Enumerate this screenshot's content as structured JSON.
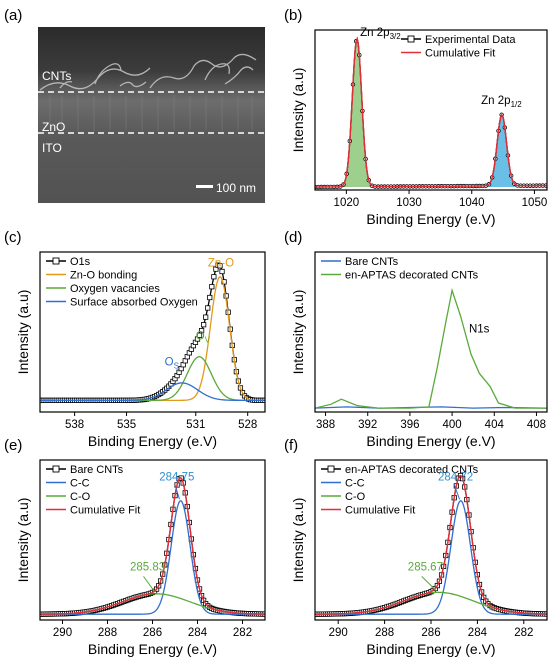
{
  "colors": {
    "black": "#000000",
    "red": "#e0303a",
    "blue": "#2f6fd0",
    "green": "#5aaa3a",
    "orange": "#e29a1a",
    "greenFill": "#8cc878",
    "blueFill": "#4fb4e0"
  },
  "sem": {
    "label": "(a)",
    "layers": {
      "cnts": "CNTs",
      "zno": "ZnO",
      "ito": "ITO"
    },
    "scale_bar": "100 nm"
  },
  "chart_data": [
    {
      "id": "b",
      "label": "(b)",
      "type": "line",
      "xlabel": "Binding Energy (e.V)",
      "ylabel": "Intensity (a.u)",
      "xlim": [
        1015,
        1052
      ],
      "ylim": [
        0,
        1.08
      ],
      "xreverse": false,
      "xticks": [
        1020,
        1030,
        1040,
        1050
      ],
      "series": [
        {
          "name": "Experimental Data",
          "role": "exp",
          "color": "#000000",
          "peaks": [
            {
              "center": 1021.7,
              "sigma": 0.75,
              "amp": 1.0
            },
            {
              "center": 1044.8,
              "sigma": 0.75,
              "amp": 0.48
            }
          ],
          "baseline": [
            0.02,
            0.03
          ]
        },
        {
          "name": "Cumulative Fit",
          "role": "fit",
          "color": "#e0303a",
          "peaks": [
            {
              "center": 1021.7,
              "sigma": 0.75,
              "amp": 1.0
            },
            {
              "center": 1044.8,
              "sigma": 0.75,
              "amp": 0.48
            }
          ],
          "baseline": [
            0.02,
            0.03
          ]
        }
      ],
      "fills": [
        {
          "color": "#8cc878",
          "center": 1021.7,
          "sigma": 0.75,
          "amp": 1.0
        },
        {
          "color": "#4fb4e0",
          "center": 1044.8,
          "sigma": 0.75,
          "amp": 0.48
        }
      ],
      "annotations": [
        {
          "main": "Zn 2p",
          "sub": "3/2",
          "x": 1022.2,
          "y": 1.04,
          "color": "#000000"
        },
        {
          "main": "Zn 2p",
          "sub": "1/2",
          "x": 1041.5,
          "y": 0.58,
          "color": "#000000"
        }
      ]
    },
    {
      "id": "c",
      "label": "(c)",
      "type": "line",
      "xlabel": "Binding Energy (e.V)",
      "ylabel": "Intensity (a.u)",
      "xlim": [
        540,
        527
      ],
      "ylim": [
        0,
        1.1
      ],
      "xreverse": true,
      "xticks": [
        538,
        535,
        531,
        528
      ],
      "series": [
        {
          "name": "O1s",
          "role": "exp",
          "color": "#000000",
          "peaks": [
            {
              "center": 529.6,
              "sigma": 0.55,
              "amp": 0.85
            },
            {
              "center": 530.8,
              "sigma": 0.7,
              "amp": 0.3
            },
            {
              "center": 531.8,
              "sigma": 0.9,
              "amp": 0.12
            }
          ],
          "baseline": [
            0.08,
            0.08
          ]
        },
        {
          "name": "Zn-O bonding",
          "role": "comp",
          "color": "#e29a1a",
          "peaks": [
            {
              "center": 529.6,
              "sigma": 0.55,
              "amp": 0.85
            }
          ],
          "baseline": [
            0.08,
            0.08
          ]
        },
        {
          "name": "Oxygen vacancies",
          "role": "comp",
          "color": "#5aaa3a",
          "peaks": [
            {
              "center": 530.8,
              "sigma": 0.7,
              "amp": 0.3
            }
          ],
          "baseline": [
            0.08,
            0.08
          ]
        },
        {
          "name": "Surface absorbed Oxygen",
          "role": "comp",
          "color": "#2f6fd0",
          "peaks": [
            {
              "center": 531.8,
              "sigma": 0.9,
              "amp": 0.12
            }
          ],
          "baseline": [
            0.08,
            0.08
          ]
        }
      ],
      "annotations": [
        {
          "main": "Zn-O",
          "sub": "",
          "x": 530.3,
          "y": 1.0,
          "color": "#e29a1a"
        },
        {
          "main": "O",
          "sub": "V",
          "x": 531.0,
          "y": 0.5,
          "color": "#5aaa3a"
        },
        {
          "main": "O",
          "sub": "S",
          "x": 532.8,
          "y": 0.32,
          "color": "#2f6fd0"
        }
      ]
    },
    {
      "id": "d",
      "label": "(d)",
      "type": "line",
      "xlabel": "Binding Energy (e.V)",
      "ylabel": "Intensity (a.u)",
      "xlim": [
        387,
        409
      ],
      "ylim": [
        0,
        1.25
      ],
      "xreverse": false,
      "xticks": [
        388,
        392,
        396,
        400,
        404,
        408
      ],
      "series": [
        {
          "name": "Bare CNTs",
          "role": "flat",
          "color": "#2f6fd0",
          "x": [
            387,
            390,
            393,
            396,
            399,
            402,
            405,
            409
          ],
          "y": [
            0.03,
            0.04,
            0.03,
            0.035,
            0.04,
            0.03,
            0.035,
            0.03
          ]
        },
        {
          "name": "en-APTAS decorated CNTs",
          "role": "raw",
          "color": "#5aaa3a",
          "x": [
            387,
            388.5,
            389.5,
            391,
            393,
            396,
            397.8,
            398.6,
            399.4,
            400,
            400.8,
            401.8,
            402.6,
            403.6,
            404.4,
            406,
            409
          ],
          "y": [
            0.03,
            0.06,
            0.1,
            0.05,
            0.03,
            0.03,
            0.04,
            0.35,
            0.7,
            0.95,
            0.75,
            0.45,
            0.3,
            0.2,
            0.07,
            0.03,
            0.03
          ]
        }
      ],
      "annotations": [
        {
          "main": "N1s",
          "sub": "",
          "x": 401.6,
          "y": 0.62,
          "color": "#000000"
        }
      ]
    },
    {
      "id": "e",
      "label": "(e)",
      "type": "line",
      "xlabel": "Binding Energy (e.V)",
      "ylabel": "Intensity (a.u)",
      "xlim": [
        291,
        281
      ],
      "ylim": [
        0,
        1.1
      ],
      "xreverse": true,
      "xticks": [
        290,
        288,
        286,
        284,
        282
      ],
      "series": [
        {
          "name": "Bare CNTs",
          "role": "exp",
          "color": "#000000",
          "peaks": [
            {
              "center": 284.75,
              "sigma": 0.42,
              "amp": 0.83
            },
            {
              "center": 285.83,
              "sigma": 1.5,
              "amp": 0.14
            }
          ],
          "baseline": [
            0.04,
            0.04
          ]
        },
        {
          "name": "C-C",
          "role": "comp",
          "color": "#2f6fd0",
          "peaks": [
            {
              "center": 284.75,
              "sigma": 0.42,
              "amp": 0.78
            }
          ],
          "baseline": [
            0.04,
            0.04
          ]
        },
        {
          "name": "C-O",
          "role": "comp",
          "color": "#5aaa3a",
          "peaks": [
            {
              "center": 285.83,
              "sigma": 1.5,
              "amp": 0.14
            }
          ],
          "baseline": [
            0.04,
            0.04
          ]
        },
        {
          "name": "Cumulative Fit",
          "role": "fit",
          "color": "#e0303a",
          "peaks": [
            {
              "center": 284.75,
              "sigma": 0.42,
              "amp": 0.83
            },
            {
              "center": 285.83,
              "sigma": 1.5,
              "amp": 0.14
            }
          ],
          "baseline": [
            0.04,
            0.04
          ]
        }
      ],
      "annotations": [
        {
          "main": "284.75",
          "sub": "",
          "x": 285.7,
          "y": 0.96,
          "color": "#2f8fd0"
        },
        {
          "main": "285.83",
          "sub": "",
          "x": 287.0,
          "y": 0.34,
          "color": "#5aaa3a"
        }
      ]
    },
    {
      "id": "f",
      "label": "(f)",
      "type": "line",
      "xlabel": "Binding Energy (e.V)",
      "ylabel": "Intensity (a.u)",
      "xlim": [
        291,
        281
      ],
      "ylim": [
        0,
        1.1
      ],
      "xreverse": true,
      "xticks": [
        290,
        288,
        286,
        284,
        282
      ],
      "series": [
        {
          "name": "en-APTAS decorated CNTs",
          "role": "exp",
          "color": "#000000",
          "peaks": [
            {
              "center": 284.72,
              "sigma": 0.42,
              "amp": 0.83
            },
            {
              "center": 285.67,
              "sigma": 1.5,
              "amp": 0.15
            }
          ],
          "baseline": [
            0.04,
            0.04
          ]
        },
        {
          "name": "C-C",
          "role": "comp",
          "color": "#2f6fd0",
          "peaks": [
            {
              "center": 284.72,
              "sigma": 0.42,
              "amp": 0.78
            }
          ],
          "baseline": [
            0.04,
            0.04
          ]
        },
        {
          "name": "C-O",
          "role": "comp",
          "color": "#5aaa3a",
          "peaks": [
            {
              "center": 285.67,
              "sigma": 1.5,
              "amp": 0.15
            }
          ],
          "baseline": [
            0.04,
            0.04
          ]
        },
        {
          "name": "Cumulative Fit",
          "role": "fit",
          "color": "#e0303a",
          "peaks": [
            {
              "center": 284.72,
              "sigma": 0.42,
              "amp": 0.83
            },
            {
              "center": 285.67,
              "sigma": 1.5,
              "amp": 0.15
            }
          ],
          "baseline": [
            0.04,
            0.04
          ]
        }
      ],
      "annotations": [
        {
          "main": "284.72",
          "sub": "",
          "x": 285.7,
          "y": 0.96,
          "color": "#2f8fd0"
        },
        {
          "main": "285.67",
          "sub": "",
          "x": 287.0,
          "y": 0.34,
          "color": "#5aaa3a"
        }
      ]
    }
  ]
}
